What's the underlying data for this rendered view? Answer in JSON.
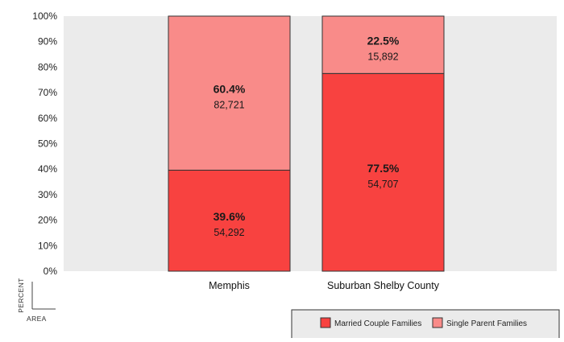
{
  "chart_data": {
    "type": "bar",
    "stacked": true,
    "percent_stacked": true,
    "categories": [
      "Memphis",
      "Suburban Shelby County"
    ],
    "series": [
      {
        "name": "Married Couple Families",
        "color": "#f84240",
        "values": [
          39.6,
          77.5
        ],
        "percent_labels": [
          "39.6%",
          "77.5%"
        ],
        "count_labels": [
          "54,292",
          "54,707"
        ]
      },
      {
        "name": "Single Parent Families",
        "color": "#f98b89",
        "values": [
          60.4,
          22.5
        ],
        "percent_labels": [
          "60.4%",
          "22.5%"
        ],
        "count_labels": [
          "82,721",
          "15,892"
        ]
      }
    ],
    "ylim": [
      0,
      100
    ],
    "ytick_values": [
      0,
      10,
      20,
      30,
      40,
      50,
      60,
      70,
      80,
      90,
      100
    ],
    "ytick_labels": [
      "0%",
      "10%",
      "20%",
      "30%",
      "40%",
      "50%",
      "60%",
      "70%",
      "80%",
      "90%",
      "100%"
    ],
    "ylabel": "PERCENT",
    "xlabel": "AREA",
    "grid": false,
    "legend_position": "bottom-right",
    "plot_background": "#ebebeb",
    "bar_border_color": "#333333"
  }
}
